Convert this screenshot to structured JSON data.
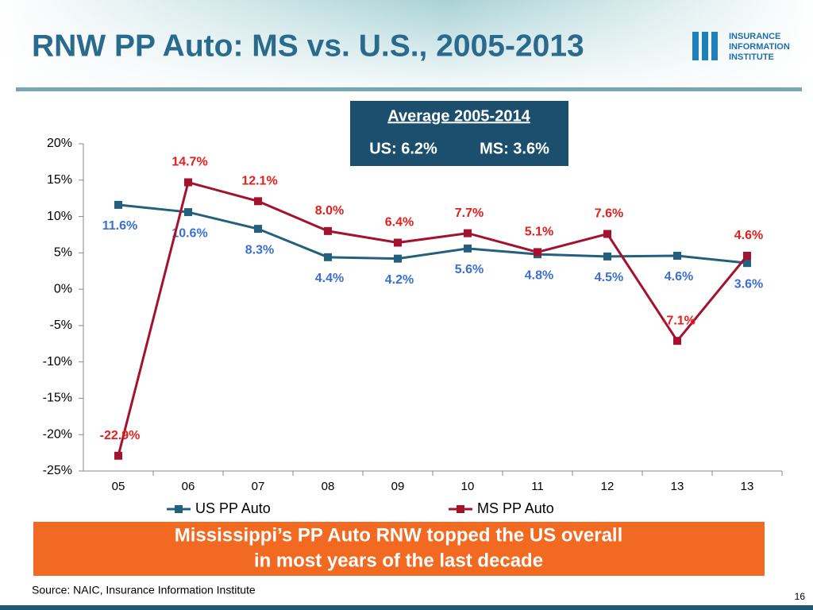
{
  "chart_data": {
    "type": "line",
    "title": "RNW PP Auto: MS vs. U.S., 2005-2013",
    "categories": [
      "05",
      "06",
      "07",
      "08",
      "09",
      "10",
      "11",
      "12",
      "13",
      "13"
    ],
    "series": [
      {
        "name": "US PP Auto",
        "color": "#24607d",
        "label_color": "#3b6fd6",
        "values": [
          11.6,
          10.6,
          8.3,
          4.4,
          4.2,
          5.6,
          4.8,
          4.5,
          4.6,
          3.6
        ],
        "value_labels": [
          "11.6%",
          "10.6%",
          "8.3%",
          "4.4%",
          "4.2%",
          "5.6%",
          "4.8%",
          "4.5%",
          "4.6%",
          "3.6%"
        ]
      },
      {
        "name": "MS PP Auto",
        "color": "#a3132d",
        "label_color": "#e3201b",
        "values": [
          -22.9,
          14.7,
          12.1,
          8.0,
          6.4,
          7.7,
          5.1,
          7.6,
          -7.1,
          4.6
        ],
        "value_labels": [
          "-22.9%",
          "14.7%",
          "12.1%",
          "8.0%",
          "6.4%",
          "7.7%",
          "5.1%",
          "7.6%",
          "-7.1%",
          "4.6%"
        ]
      }
    ],
    "ylim": [
      -25,
      20
    ],
    "yticks": [
      {
        "value": -25,
        "label": "-25%"
      },
      {
        "value": -20,
        "label": "-20%"
      },
      {
        "value": -15,
        "label": "-15%"
      },
      {
        "value": -10,
        "label": "-10%"
      },
      {
        "value": -5,
        "label": "-5%"
      },
      {
        "value": 0,
        "label": "0%"
      },
      {
        "value": 5,
        "label": "5%"
      },
      {
        "value": 10,
        "label": "10%"
      },
      {
        "value": 15,
        "label": "15%"
      },
      {
        "value": 20,
        "label": "20%"
      }
    ],
    "grid": false,
    "legend": "bottom"
  },
  "slide": {
    "logo": [
      "INSURANCE",
      "INFORMATION",
      "INSTITUTE"
    ],
    "callout": {
      "heading": "Average 2005-2014",
      "us": "US: 6.2%",
      "ms": "MS: 3.6%"
    },
    "banner": [
      "Mississippi’s PP Auto RNW topped the US overall",
      "in most years of the last decade"
    ],
    "source": "Source: NAIC, Insurance Information Institute",
    "page_number": "16"
  }
}
